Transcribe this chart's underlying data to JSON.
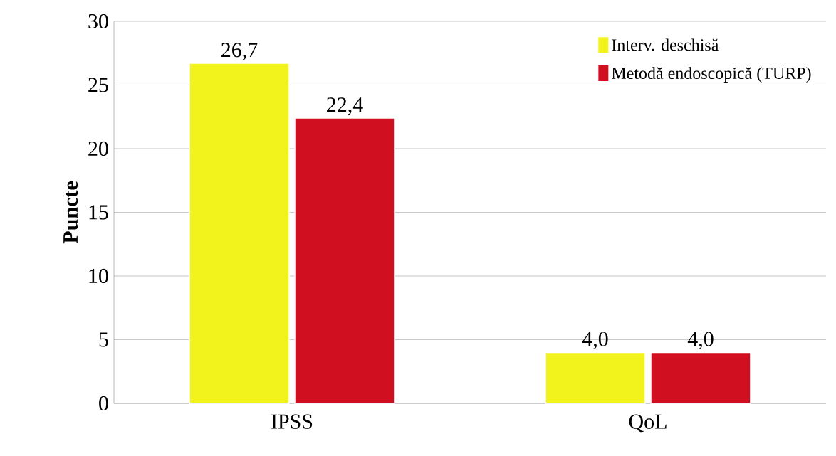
{
  "chart_data": {
    "type": "bar",
    "categories": [
      "IPSS",
      "QoL"
    ],
    "ylabel": "Puncte",
    "series": [
      {
        "name": "Interv. deschisă",
        "color": "#f2f21c",
        "values": [
          26.7,
          4.0
        ],
        "value_labels": [
          "26,7",
          "4,0"
        ]
      },
      {
        "name": "Metodă endoscopică (TURP)",
        "color": "#d01020",
        "values": [
          22.4,
          4.0
        ],
        "value_labels": [
          "22,4",
          "4,0"
        ]
      }
    ],
    "ylim": [
      0,
      30
    ],
    "yticks": [
      0,
      5,
      10,
      15,
      20,
      25,
      30
    ],
    "grid": "y",
    "legend": "top right"
  }
}
